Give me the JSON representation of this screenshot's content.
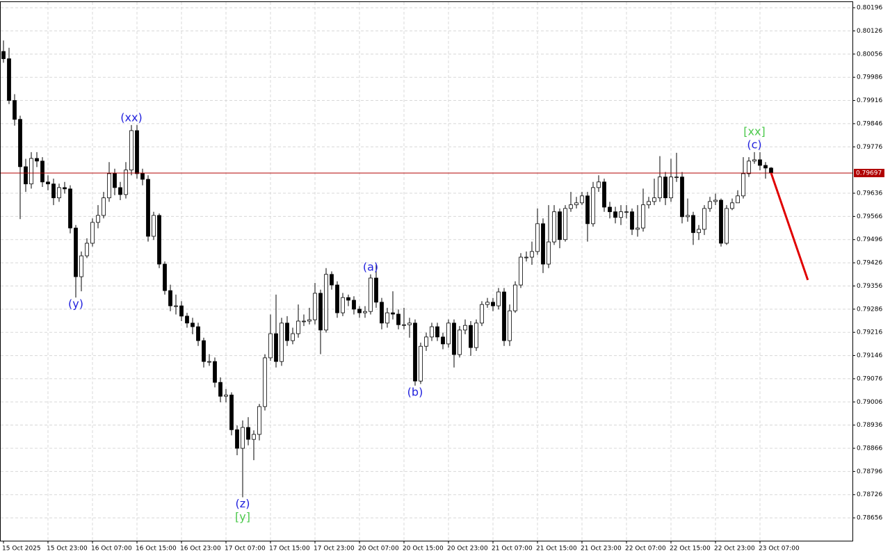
{
  "chart_data": {
    "type": "candlestick",
    "categories": [
      "15 Oct 2025",
      null,
      null,
      null,
      null,
      null,
      null,
      null,
      "15 Oct 23:00",
      null,
      null,
      null,
      null,
      null,
      null,
      null,
      "16 Oct 07:00",
      null,
      null,
      null,
      null,
      null,
      null,
      null,
      "16 Oct 15:00",
      null,
      null,
      null,
      null,
      null,
      null,
      null,
      "16 Oct 23:00",
      null,
      null,
      null,
      null,
      null,
      null,
      null,
      "17 Oct 07:00",
      null,
      null,
      null,
      null,
      null,
      null,
      null,
      "17 Oct 15:00",
      null,
      null,
      null,
      null,
      null,
      null,
      null,
      "17 Oct 23:00",
      null,
      null,
      null,
      null,
      null,
      null,
      null,
      "20 Oct 07:00",
      null,
      null,
      null,
      null,
      null,
      null,
      null,
      "20 Oct 15:00",
      null,
      null,
      null,
      null,
      null,
      null,
      null,
      "20 Oct 23:00",
      null,
      null,
      null,
      null,
      null,
      null,
      null,
      "21 Oct 07:00",
      null,
      null,
      null,
      null,
      null,
      null,
      null,
      "21 Oct 15:00",
      null,
      null,
      null,
      null,
      null,
      null,
      null,
      "21 Oct 23:00",
      null,
      null,
      null,
      null,
      null,
      null,
      null,
      "22 Oct 07:00",
      null,
      null,
      null,
      null,
      null,
      null,
      null,
      "22 Oct 15:00",
      null,
      null,
      null,
      null,
      null,
      null,
      null,
      "22 Oct 23:00",
      null,
      null,
      null,
      null,
      null,
      null,
      null,
      "23 Oct 07:00",
      null,
      null
    ],
    "ohlc": [
      [
        0.80064,
        0.80097,
        0.8003,
        0.80042
      ],
      [
        0.80042,
        0.80075,
        0.79905,
        0.79916
      ],
      [
        0.79916,
        0.79935,
        0.7984,
        0.79859
      ],
      [
        0.79859,
        0.7987,
        0.79558,
        0.79716
      ],
      [
        0.79716,
        0.7974,
        0.7964,
        0.79664
      ],
      [
        0.79664,
        0.7976,
        0.7965,
        0.79741
      ],
      [
        0.79741,
        0.7976,
        0.79715,
        0.79733
      ],
      [
        0.79733,
        0.79745,
        0.79655,
        0.7967
      ],
      [
        0.7967,
        0.7969,
        0.79645,
        0.79664
      ],
      [
        0.79664,
        0.7968,
        0.796,
        0.79622
      ],
      [
        0.79622,
        0.79665,
        0.7961,
        0.79653
      ],
      [
        0.79653,
        0.7967,
        0.79635,
        0.79649
      ],
      [
        0.79649,
        0.7966,
        0.79515,
        0.79531
      ],
      [
        0.79531,
        0.7954,
        0.79321,
        0.79384
      ],
      [
        0.79384,
        0.7946,
        0.7934,
        0.79447
      ],
      [
        0.79447,
        0.795,
        0.7944,
        0.79485
      ],
      [
        0.79485,
        0.7956,
        0.79475,
        0.79548
      ],
      [
        0.79548,
        0.796,
        0.7953,
        0.79569
      ],
      [
        0.79569,
        0.7964,
        0.7956,
        0.79622
      ],
      [
        0.79622,
        0.7973,
        0.7961,
        0.79695
      ],
      [
        0.79695,
        0.7971,
        0.7963,
        0.79653
      ],
      [
        0.79653,
        0.7967,
        0.79615,
        0.79632
      ],
      [
        0.79632,
        0.7973,
        0.7962,
        0.79706
      ],
      [
        0.79706,
        0.79842,
        0.7969,
        0.79825
      ],
      [
        0.79825,
        0.79842,
        0.7968,
        0.79695
      ],
      [
        0.79695,
        0.7971,
        0.7966,
        0.79678
      ],
      [
        0.79678,
        0.7969,
        0.7949,
        0.79506
      ],
      [
        0.79506,
        0.7958,
        0.79495,
        0.79569
      ],
      [
        0.79569,
        0.79575,
        0.7941,
        0.79422
      ],
      [
        0.79422,
        0.7943,
        0.7933,
        0.79342
      ],
      [
        0.79342,
        0.7936,
        0.7928,
        0.79296
      ],
      [
        0.79296,
        0.7933,
        0.7927,
        0.79296
      ],
      [
        0.79296,
        0.7931,
        0.7925,
        0.79265
      ],
      [
        0.79265,
        0.79275,
        0.7923,
        0.79244
      ],
      [
        0.79244,
        0.7926,
        0.7921,
        0.79233
      ],
      [
        0.79233,
        0.79245,
        0.79175,
        0.79191
      ],
      [
        0.79191,
        0.792,
        0.7911,
        0.79128
      ],
      [
        0.79128,
        0.7915,
        0.79115,
        0.79128
      ],
      [
        0.79128,
        0.7914,
        0.7905,
        0.79065
      ],
      [
        0.79065,
        0.7908,
        0.79005,
        0.79023
      ],
      [
        0.79023,
        0.79045,
        0.79005,
        0.79027
      ],
      [
        0.79027,
        0.79035,
        0.78905,
        0.78922
      ],
      [
        0.78922,
        0.78935,
        0.78845,
        0.78866
      ],
      [
        0.78866,
        0.7895,
        0.78718,
        0.78929
      ],
      [
        0.78929,
        0.7896,
        0.78875,
        0.78893
      ],
      [
        0.78893,
        0.7892,
        0.7883,
        0.78908
      ],
      [
        0.78908,
        0.79,
        0.7889,
        0.78992
      ],
      [
        0.78992,
        0.7915,
        0.7898,
        0.79139
      ],
      [
        0.79139,
        0.7927,
        0.7913,
        0.79212
      ],
      [
        0.79212,
        0.7933,
        0.7911,
        0.79128
      ],
      [
        0.79128,
        0.7926,
        0.79115,
        0.79244
      ],
      [
        0.79244,
        0.79265,
        0.79175,
        0.79191
      ],
      [
        0.79191,
        0.7923,
        0.7918,
        0.79212
      ],
      [
        0.79212,
        0.793,
        0.792,
        0.7925
      ],
      [
        0.7925,
        0.7927,
        0.79235,
        0.7925
      ],
      [
        0.7925,
        0.7929,
        0.7924,
        0.79254
      ],
      [
        0.79254,
        0.79365,
        0.7924,
        0.79334
      ],
      [
        0.79334,
        0.79345,
        0.7915,
        0.79223
      ],
      [
        0.79223,
        0.7941,
        0.79215,
        0.79391
      ],
      [
        0.79391,
        0.794,
        0.79345,
        0.79359
      ],
      [
        0.79359,
        0.7937,
        0.7926,
        0.79275
      ],
      [
        0.79275,
        0.79335,
        0.79265,
        0.79321
      ],
      [
        0.79321,
        0.7933,
        0.79295,
        0.79313
      ],
      [
        0.79313,
        0.79325,
        0.7927,
        0.79286
      ],
      [
        0.79286,
        0.79295,
        0.7926,
        0.79275
      ],
      [
        0.79275,
        0.79295,
        0.7926,
        0.79279
      ],
      [
        0.79279,
        0.79391,
        0.7927,
        0.7938
      ],
      [
        0.7938,
        0.7942,
        0.7929,
        0.79307
      ],
      [
        0.79307,
        0.7932,
        0.79225,
        0.79244
      ],
      [
        0.79244,
        0.7929,
        0.7923,
        0.79275
      ],
      [
        0.79275,
        0.7934,
        0.79255,
        0.79271
      ],
      [
        0.79271,
        0.79285,
        0.79225,
        0.79239
      ],
      [
        0.79239,
        0.7929,
        0.79225,
        0.79239
      ],
      [
        0.79239,
        0.7926,
        0.792,
        0.79244
      ],
      [
        0.79244,
        0.79255,
        0.79055,
        0.79069
      ],
      [
        0.79069,
        0.79185,
        0.7906,
        0.79174
      ],
      [
        0.79174,
        0.79215,
        0.7916,
        0.79202
      ],
      [
        0.79202,
        0.79245,
        0.7919,
        0.79233
      ],
      [
        0.79233,
        0.79245,
        0.7919,
        0.79202
      ],
      [
        0.79202,
        0.79215,
        0.79165,
        0.79181
      ],
      [
        0.79181,
        0.79255,
        0.7917,
        0.79244
      ],
      [
        0.79244,
        0.79255,
        0.7911,
        0.79149
      ],
      [
        0.79149,
        0.79235,
        0.7914,
        0.79223
      ],
      [
        0.79223,
        0.79255,
        0.7921,
        0.79237
      ],
      [
        0.79237,
        0.7925,
        0.79145,
        0.7917
      ],
      [
        0.7917,
        0.79255,
        0.7916,
        0.79244
      ],
      [
        0.79244,
        0.7931,
        0.79235,
        0.793
      ],
      [
        0.793,
        0.7932,
        0.7929,
        0.79307
      ],
      [
        0.79307,
        0.7932,
        0.7928,
        0.79296
      ],
      [
        0.79296,
        0.7935,
        0.79285,
        0.79338
      ],
      [
        0.79338,
        0.7935,
        0.79175,
        0.79191
      ],
      [
        0.79191,
        0.793,
        0.79175,
        0.79281
      ],
      [
        0.79281,
        0.7937,
        0.79275,
        0.79359
      ],
      [
        0.79359,
        0.79455,
        0.7935,
        0.79443
      ],
      [
        0.79443,
        0.7946,
        0.7943,
        0.79443
      ],
      [
        0.79443,
        0.7949,
        0.7942,
        0.7946
      ],
      [
        0.7946,
        0.7959,
        0.7945,
        0.79544
      ],
      [
        0.79544,
        0.7956,
        0.79395,
        0.79422
      ],
      [
        0.79422,
        0.796,
        0.7941,
        0.79489
      ],
      [
        0.79489,
        0.796,
        0.7948,
        0.7958
      ],
      [
        0.7958,
        0.7959,
        0.7947,
        0.79496
      ],
      [
        0.79496,
        0.796,
        0.7949,
        0.7959
      ],
      [
        0.7959,
        0.7964,
        0.7958,
        0.79601
      ],
      [
        0.79601,
        0.79625,
        0.7959,
        0.79607
      ],
      [
        0.79607,
        0.7964,
        0.796,
        0.79628
      ],
      [
        0.79628,
        0.7964,
        0.7949,
        0.79544
      ],
      [
        0.79544,
        0.7967,
        0.79535,
        0.79653
      ],
      [
        0.79653,
        0.7969,
        0.7964,
        0.7967
      ],
      [
        0.7967,
        0.7968,
        0.7958,
        0.79594
      ],
      [
        0.79594,
        0.7961,
        0.7956,
        0.7958
      ],
      [
        0.7958,
        0.79595,
        0.79545,
        0.79563
      ],
      [
        0.79563,
        0.796,
        0.7954,
        0.7958
      ],
      [
        0.7958,
        0.796,
        0.7956,
        0.7958
      ],
      [
        0.7958,
        0.7959,
        0.7951,
        0.79527
      ],
      [
        0.79527,
        0.796,
        0.79505,
        0.79531
      ],
      [
        0.79531,
        0.7965,
        0.7952,
        0.79601
      ],
      [
        0.79601,
        0.79625,
        0.7959,
        0.79611
      ],
      [
        0.79611,
        0.7968,
        0.796,
        0.79622
      ],
      [
        0.79622,
        0.79748,
        0.7961,
        0.79685
      ],
      [
        0.79685,
        0.797,
        0.796,
        0.79622
      ],
      [
        0.79622,
        0.7974,
        0.7961,
        0.79685
      ],
      [
        0.79685,
        0.79758,
        0.7967,
        0.79685
      ],
      [
        0.79685,
        0.797,
        0.79545,
        0.79565
      ],
      [
        0.79565,
        0.7962,
        0.7955,
        0.79569
      ],
      [
        0.79569,
        0.7958,
        0.7948,
        0.79517
      ],
      [
        0.79517,
        0.7954,
        0.79495,
        0.79527
      ],
      [
        0.79527,
        0.796,
        0.7951,
        0.7959
      ],
      [
        0.7959,
        0.79625,
        0.7958,
        0.79611
      ],
      [
        0.79611,
        0.79635,
        0.796,
        0.79615
      ],
      [
        0.79615,
        0.7962,
        0.79475,
        0.79485
      ],
      [
        0.79485,
        0.796,
        0.7948,
        0.7959
      ],
      [
        0.7959,
        0.7962,
        0.79585,
        0.79607
      ],
      [
        0.79607,
        0.79645,
        0.79615,
        0.79628
      ],
      [
        0.79628,
        0.79745,
        0.7962,
        0.79695
      ],
      [
        0.79695,
        0.79745,
        0.79685,
        0.79733
      ],
      [
        0.79733,
        0.7976,
        0.79725,
        0.79737
      ],
      [
        0.79737,
        0.7976,
        0.79705,
        0.7972
      ],
      [
        0.7972,
        0.7973,
        0.7968,
        0.79712
      ],
      [
        0.79712,
        0.79715,
        0.7969,
        0.79697
      ]
    ],
    "up_color": "#ffffff",
    "down_color": "#000000",
    "ylim": [
      0.78587,
      0.80213
    ],
    "yticks": [
      0.80196,
      0.80126,
      0.80056,
      0.79986,
      0.79916,
      0.79846,
      0.79776,
      0.79636,
      0.79566,
      0.79496,
      0.79426,
      0.79356,
      0.79286,
      0.79216,
      0.79146,
      0.79076,
      0.79006,
      0.78936,
      0.78866,
      0.78796,
      0.78726,
      0.78656
    ],
    "grid": true,
    "current_price": 0.79697,
    "price_line_color": "#b00000",
    "annotations": [
      {
        "text": "(y)",
        "candle": 13,
        "side": "below",
        "color": "#1f1fdd"
      },
      {
        "text": "(xx)",
        "candle": 23,
        "side": "above",
        "color": "#1f1fdd"
      },
      {
        "text": "(z)",
        "candle": 43,
        "side": "below",
        "color": "#1f1fdd"
      },
      {
        "text": "[y]",
        "candle": 43,
        "side": "below",
        "color": "#4cc94c"
      },
      {
        "text": "(a)",
        "candle": 66,
        "side": "above",
        "color": "#1f1fdd"
      },
      {
        "text": "(b)",
        "candle": 74,
        "side": "below",
        "color": "#1f1fdd"
      },
      {
        "text": "(c)",
        "candle": 135,
        "side": "above",
        "color": "#1f1fdd"
      },
      {
        "text": "[xx]",
        "candle": 135,
        "side": "above",
        "color": "#4cc94c"
      }
    ],
    "forecast": {
      "from": [
        138,
        0.79697
      ],
      "to": [
        144.6,
        0.79374
      ],
      "color": "#e00000"
    }
  }
}
